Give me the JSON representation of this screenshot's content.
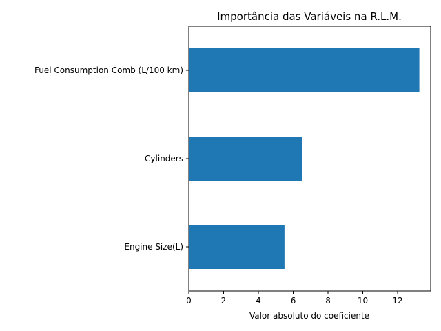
{
  "chart_data": {
    "type": "bar",
    "orientation": "horizontal",
    "title": "Importância das Variáveis na R.L.M.",
    "xlabel": "Valor absoluto do coeficiente",
    "ylabel": "",
    "categories": [
      "Fuel Consumption Comb (L/100 km)",
      "Cylinders",
      "Engine Size(L)"
    ],
    "values": [
      13.25,
      6.5,
      5.5
    ],
    "xlim": [
      0,
      13.9
    ],
    "xticks": [
      0,
      2,
      4,
      6,
      8,
      10,
      12
    ],
    "grid": false,
    "bar_color": "#1f77b4"
  }
}
